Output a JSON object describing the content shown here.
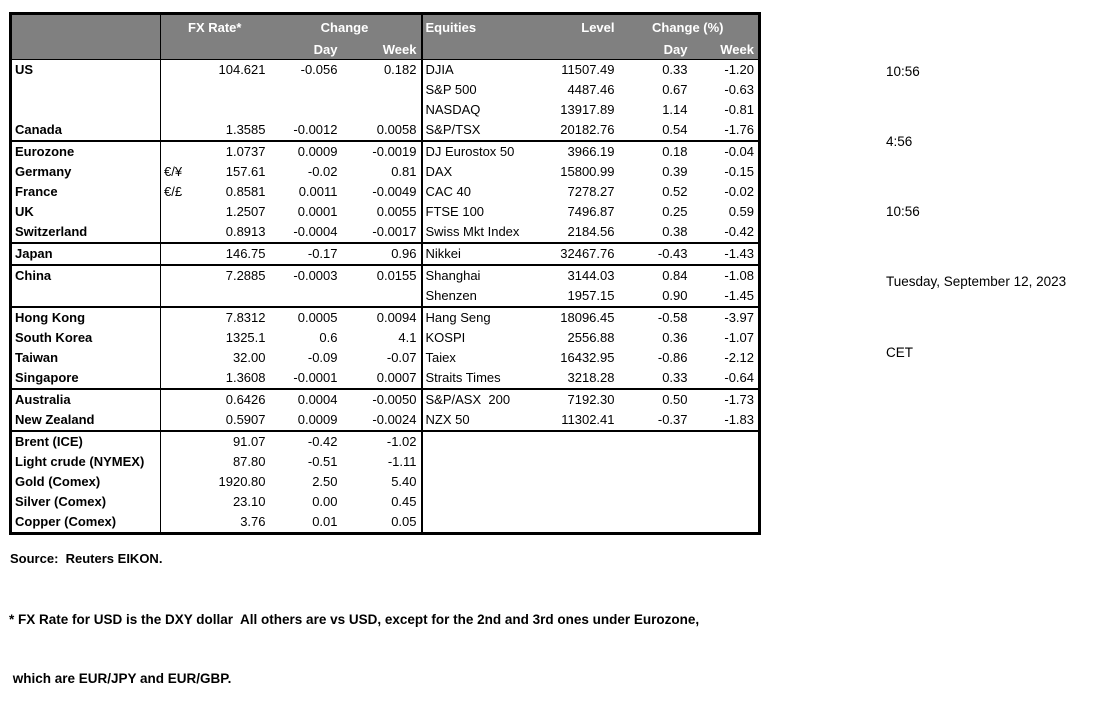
{
  "table": {
    "fx_header": {
      "rate": "FX Rate*",
      "change": "Change",
      "day": "Day",
      "week": "Week"
    },
    "eq_header": {
      "name": "Equities",
      "level": "Level",
      "change": "Change (%)",
      "day": "Day",
      "week": "Week"
    },
    "rows": [
      {
        "fx": [
          "US",
          "",
          "104.621",
          "-0.056",
          "0.182"
        ],
        "eq": [
          "DJIA",
          "11507.49",
          "0.33",
          "-1.20"
        ]
      },
      {
        "eq": [
          "S&P 500",
          "4487.46",
          "0.67",
          "-0.63"
        ]
      },
      {
        "eq": [
          "NASDAQ",
          "13917.89",
          "1.14",
          "-0.81"
        ]
      },
      {
        "fx": [
          "Canada",
          "",
          "1.3585",
          "-0.0012",
          "0.0058"
        ],
        "eq": [
          "S&P/TSX",
          "20182.76",
          "0.54",
          "-1.76"
        ]
      },
      {
        "sep": true,
        "fx": [
          "Eurozone",
          "",
          "1.0737",
          "0.0009",
          "-0.0019"
        ],
        "eq": [
          "DJ Eurostox 50",
          "3966.19",
          "0.18",
          "-0.04"
        ]
      },
      {
        "ind": true,
        "fx": [
          "Germany",
          "€/¥",
          "157.61",
          "-0.02",
          "0.81"
        ],
        "eq": [
          "DAX",
          "15800.99",
          "0.39",
          "-0.15"
        ]
      },
      {
        "ind": true,
        "fx": [
          "France",
          "€/£",
          "0.8581",
          "0.0011",
          "-0.0049"
        ],
        "eq": [
          "CAC 40",
          "7278.27",
          "0.52",
          "-0.02"
        ]
      },
      {
        "fx": [
          "UK",
          "",
          "1.2507",
          "0.0001",
          "0.0055"
        ],
        "eq": [
          "FTSE 100",
          "7496.87",
          "0.25",
          "0.59"
        ]
      },
      {
        "fx": [
          "Switzerland",
          "",
          "0.8913",
          "-0.0004",
          "-0.0017"
        ],
        "eq": [
          "Swiss Mkt Index",
          "2184.56",
          "0.38",
          "-0.42"
        ]
      },
      {
        "sep": true,
        "fx": [
          "Japan",
          "",
          "146.75",
          "-0.17",
          "0.96"
        ],
        "eq": [
          "Nikkei",
          "32467.76",
          "-0.43",
          "-1.43"
        ]
      },
      {
        "sep": true,
        "fx": [
          "China",
          "",
          "7.2885",
          "-0.0003",
          "0.0155"
        ],
        "eq": [
          "Shanghai",
          "3144.03",
          "0.84",
          "-1.08"
        ]
      },
      {
        "eq": [
          "Shenzen",
          "1957.15",
          "0.90",
          "-1.45"
        ]
      },
      {
        "sep": true,
        "fx": [
          "Hong Kong",
          "",
          "7.8312",
          "0.0005",
          "0.0094"
        ],
        "eq": [
          "Hang Seng",
          "18096.45",
          "-0.58",
          "-3.97"
        ]
      },
      {
        "fx": [
          "South Korea",
          "",
          "1325.1",
          "0.6",
          "4.1"
        ],
        "eq": [
          "KOSPI",
          "2556.88",
          "0.36",
          "-1.07"
        ]
      },
      {
        "fx": [
          "Taiwan",
          "",
          "32.00",
          "-0.09",
          "-0.07"
        ],
        "eq": [
          "Taiex",
          "16432.95",
          "-0.86",
          "-2.12"
        ]
      },
      {
        "fx": [
          "Singapore",
          "",
          "1.3608",
          "-0.0001",
          "0.0007"
        ],
        "eq": [
          "Straits Times",
          "3218.28",
          "0.33",
          "-0.64"
        ]
      },
      {
        "sep": true,
        "fx": [
          "Australia",
          "",
          "0.6426",
          "0.0004",
          "-0.0050"
        ],
        "eq": [
          "S&P/ASX  200",
          "7192.30",
          "0.50",
          "-1.73"
        ]
      },
      {
        "fx": [
          "New Zealand",
          "",
          "0.5907",
          "0.0009",
          "-0.0024"
        ],
        "eq": [
          "NZX 50",
          "11302.41",
          "-0.37",
          "-1.83"
        ]
      },
      {
        "sep": true,
        "fx": [
          "Brent (ICE)",
          "",
          "91.07",
          "-0.42",
          "-1.02"
        ]
      },
      {
        "fx": [
          "Light crude (NYMEX)",
          "",
          "87.80",
          "-0.51",
          "-1.11"
        ]
      },
      {
        "fx": [
          "Gold (Comex)",
          "",
          "1920.80",
          "2.50",
          "5.40"
        ]
      },
      {
        "fx": [
          "Silver (Comex)",
          "",
          "23.10",
          "0.00",
          "0.45"
        ]
      },
      {
        "fx": [
          "Copper (Comex)",
          "",
          "3.76",
          "0.01",
          "0.05"
        ]
      }
    ]
  },
  "info_panel": {
    "lines": [
      "10:56",
      "4:56",
      "10:56",
      "Tuesday, September 12, 2023",
      "CET"
    ]
  },
  "footer": {
    "source": "Source:  Reuters EIKON.",
    "footnote_line1": "* FX Rate for USD is the DXY dollar  All others are vs USD, except for the 2nd and 3rd ones under Eurozone,",
    "footnote_line2": " which are EUR/JPY and EUR/GBP."
  },
  "colors": {
    "header_bg": "#808080",
    "header_text": "#ffffff",
    "border": "#000000",
    "text": "#000000"
  }
}
